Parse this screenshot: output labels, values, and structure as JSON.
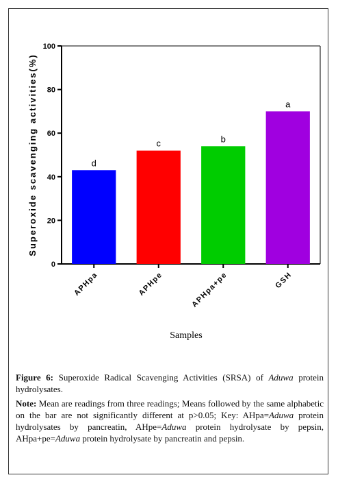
{
  "chart_data": {
    "type": "bar",
    "ylabel": "Superoxide scavenging activities(%)",
    "xlabel": "Samples",
    "categories": [
      "APHpa",
      "APHpe",
      "APHpa+pe",
      "GSH"
    ],
    "values": [
      43,
      52,
      54,
      70
    ],
    "colors": [
      "#0000ff",
      "#ff0000",
      "#00cc00",
      "#a000e0"
    ],
    "letters": [
      "d",
      "c",
      "b",
      "a"
    ],
    "ylim": [
      0,
      100
    ],
    "yticks": [
      0,
      20,
      40,
      60,
      80,
      100
    ]
  },
  "caption": {
    "figure_label": "Figure 6:",
    "title_parts": [
      "Superoxide Radical Scavenging Activities (SRSA) of ",
      "Aduwa",
      " protein hydrolysates."
    ],
    "note_label": "Note:",
    "note_parts": [
      "Mean are readings from three readings; Means followed by the same alphabetic on the bar are not significantly different at p>0.05; Key: AHpa=",
      "Aduwa",
      " protein hydrolysates by pancreatin, AHpe=",
      "Aduwa",
      " protein hydrolysate by pepsin, AHpa+pe=",
      "Aduwa",
      " protein hydrolysate by pancreatin and pepsin."
    ]
  }
}
